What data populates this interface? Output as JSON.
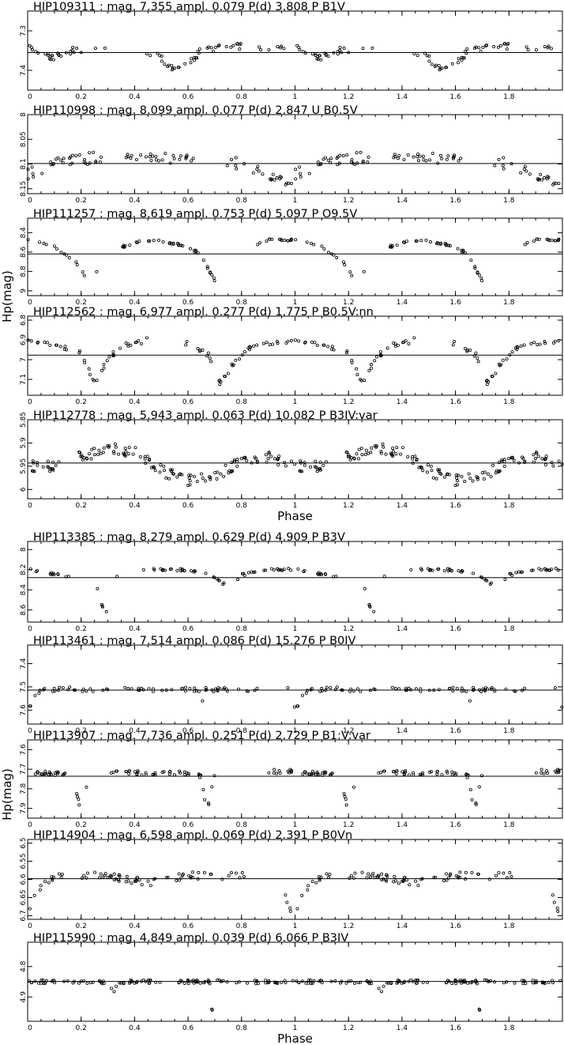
{
  "figure": {
    "phase_label": "Phase",
    "hp_label": "Hp(mag)"
  },
  "chart_data": [
    {
      "type": "scatter",
      "title": "HIP109311 : mag. 7.355 ampl. 0.079 P(d)   3.808 P B1V",
      "ylim": [
        7.45,
        7.25
      ],
      "reversed": true,
      "yticks": [
        7.3,
        7.4
      ],
      "mean": 7.355,
      "x_range": [
        0,
        2
      ],
      "xticks": [
        0,
        0.2,
        0.4,
        0.6,
        0.8,
        1,
        1.2,
        1.4,
        1.6,
        1.8
      ],
      "xlabel": "",
      "ylabel": "",
      "profile": [
        [
          0,
          7.34
        ],
        [
          0.05,
          7.36
        ],
        [
          0.1,
          7.37
        ],
        [
          0.15,
          7.35
        ],
        [
          0.3,
          7.35
        ],
        [
          0.45,
          7.35
        ],
        [
          0.5,
          7.37
        ],
        [
          0.56,
          7.4
        ],
        [
          0.6,
          7.38
        ],
        [
          0.65,
          7.35
        ],
        [
          0.75,
          7.34
        ],
        [
          0.9,
          7.34
        ],
        [
          1.0,
          7.34
        ]
      ],
      "gaps": [
        [
          0.29,
          0.44
        ],
        [
          0.8,
          0.86
        ]
      ],
      "points_per_cycle": 75,
      "scatter": 0.009,
      "phase_offset": 0.02
    },
    {
      "type": "scatter",
      "title": "HIP110998 : mag. 8.099 ampl. 0.077 P(d)   2.847 U B0.5V",
      "ylim": [
        8.16,
        8.0
      ],
      "reversed": true,
      "yticks": [
        8,
        8.05,
        8.1,
        8.15
      ],
      "mean": 8.099,
      "x_range": [
        0,
        2
      ],
      "xticks": [
        0,
        0.2,
        0.4,
        0.6,
        0.8,
        1,
        1.2,
        1.4,
        1.6,
        1.8
      ],
      "xlabel": "",
      "ylabel": "",
      "profile": [
        [
          0,
          8.12
        ],
        [
          0.05,
          8.11
        ],
        [
          0.1,
          8.09
        ],
        [
          0.2,
          8.09
        ],
        [
          0.4,
          8.08
        ],
        [
          0.6,
          8.09
        ],
        [
          0.8,
          8.1
        ],
        [
          0.9,
          8.12
        ],
        [
          0.97,
          8.14
        ],
        [
          1.0,
          8.12
        ]
      ],
      "gaps": [
        [
          0.28,
          0.36
        ],
        [
          0.62,
          0.74
        ]
      ],
      "points_per_cycle": 85,
      "scatter": 0.012,
      "phase_offset": 0.0
    },
    {
      "type": "scatter",
      "title": "HIP111257 : mag. 8.619 ampl. 0.753 P(d)   5.097 P O9.5V",
      "ylim": [
        9.05,
        8.25
      ],
      "reversed": true,
      "yticks": [
        8.4,
        8.6,
        8.8,
        9
      ],
      "mean": 8.619,
      "x_range": [
        0,
        2
      ],
      "xticks": [
        0,
        0.2,
        0.4,
        0.6,
        0.8,
        1,
        1.2,
        1.4,
        1.6,
        1.8
      ],
      "xlabel": "",
      "ylabel": "",
      "profile": [
        [
          0,
          8.47
        ],
        [
          0.1,
          8.55
        ],
        [
          0.18,
          8.7
        ],
        [
          0.23,
          8.92
        ],
        [
          0.3,
          8.6
        ],
        [
          0.4,
          8.5
        ],
        [
          0.5,
          8.48
        ],
        [
          0.6,
          8.55
        ],
        [
          0.65,
          8.63
        ],
        [
          0.7,
          8.9
        ],
        [
          0.75,
          9.05
        ],
        [
          0.8,
          8.6
        ],
        [
          0.9,
          8.48
        ],
        [
          1.0,
          8.47
        ]
      ],
      "gaps": [
        [
          0.26,
          0.33
        ],
        [
          0.72,
          0.85
        ]
      ],
      "points_per_cycle": 70,
      "scatter": 0.015,
      "phase_offset": 0.0
    },
    {
      "type": "scatter",
      "title": "HIP112562 : mag. 6.977 ampl. 0.277 P(d)   1.775 P B0.5V:nn",
      "ylim": [
        7.18,
        6.78
      ],
      "reversed": true,
      "yticks": [
        6.8,
        6.9,
        7,
        7.1
      ],
      "mean": 6.977,
      "x_range": [
        0,
        2
      ],
      "xticks": [
        0,
        0.2,
        0.4,
        0.6,
        0.8,
        1,
        1.2,
        1.4,
        1.6,
        1.8
      ],
      "xlabel": "",
      "ylabel": "",
      "profile": [
        [
          0,
          6.9
        ],
        [
          0.1,
          6.92
        ],
        [
          0.2,
          6.97
        ],
        [
          0.25,
          7.12
        ],
        [
          0.3,
          7.0
        ],
        [
          0.35,
          6.93
        ],
        [
          0.45,
          6.9
        ],
        [
          0.6,
          6.92
        ],
        [
          0.68,
          6.98
        ],
        [
          0.72,
          7.12
        ],
        [
          0.78,
          7.0
        ],
        [
          0.85,
          6.92
        ],
        [
          1.0,
          6.9
        ]
      ],
      "gaps": [
        [
          0.45,
          0.58
        ]
      ],
      "points_per_cycle": 80,
      "scatter": 0.012,
      "phase_offset": 0.0
    },
    {
      "type": "scatter",
      "title": "HIP112778 : mag. 5.943 ampl. 0.063 P(d)  10.082 P B3IV:var",
      "ylim": [
        6.02,
        5.85
      ],
      "reversed": true,
      "yticks": [
        5.85,
        5.9,
        5.95,
        6
      ],
      "mean": 5.943,
      "x_range": [
        0,
        2
      ],
      "xticks": [
        0,
        0.2,
        0.4,
        0.6,
        0.8,
        1,
        1.2,
        1.4,
        1.6,
        1.8
      ],
      "xlabel": "Phase",
      "ylabel": "",
      "profile": [
        [
          0,
          5.95
        ],
        [
          0.1,
          5.95
        ],
        [
          0.2,
          5.93
        ],
        [
          0.3,
          5.91
        ],
        [
          0.4,
          5.92
        ],
        [
          0.5,
          5.96
        ],
        [
          0.6,
          5.98
        ],
        [
          0.7,
          5.97
        ],
        [
          0.8,
          5.94
        ],
        [
          0.9,
          5.93
        ],
        [
          1.0,
          5.95
        ]
      ],
      "gaps": [
        [
          0.12,
          0.18
        ]
      ],
      "points_per_cycle": 140,
      "scatter": 0.012,
      "phase_offset": 0.0
    },
    {
      "type": "scatter",
      "title": "HIP113385 : mag. 8.279 ampl. 0.629 P(d)   4.909 P B3V",
      "ylim": [
        8.72,
        7.92
      ],
      "reversed": true,
      "yticks": [
        8,
        8.2,
        8.4,
        8.6
      ],
      "mean": 8.279,
      "x_range": [
        0,
        2
      ],
      "xticks": [
        0,
        0.2,
        0.4,
        0.6,
        0.8,
        1,
        1.2,
        1.4,
        1.6,
        1.8
      ],
      "xlabel": "",
      "ylabel": "",
      "profile": [
        [
          0,
          8.2
        ],
        [
          0.05,
          8.22
        ],
        [
          0.15,
          8.26
        ],
        [
          0.25,
          8.3
        ],
        [
          0.29,
          8.65
        ],
        [
          0.33,
          8.28
        ],
        [
          0.45,
          8.2
        ],
        [
          0.6,
          8.2
        ],
        [
          0.7,
          8.27
        ],
        [
          0.75,
          8.38
        ],
        [
          0.8,
          8.25
        ],
        [
          0.9,
          8.19
        ],
        [
          1.0,
          8.2
        ]
      ],
      "gaps": [
        [
          0.16,
          0.26
        ],
        [
          0.34,
          0.43
        ]
      ],
      "points_per_cycle": 70,
      "scatter": 0.013,
      "phase_offset": 0.0
    },
    {
      "type": "scatter",
      "title": "HIP113461 : mag. 7.514 ampl. 0.086 P(d)  15.276 P B0IV",
      "ylim": [
        7.66,
        7.32
      ],
      "reversed": true,
      "yticks": [
        7.4,
        7.5,
        7.6
      ],
      "mean": 7.514,
      "x_range": [
        0,
        2
      ],
      "xticks": [
        0,
        0.2,
        0.4,
        0.6,
        0.8,
        1,
        1.2,
        1.4,
        1.6,
        1.8
      ],
      "xlabel": "",
      "ylabel": "",
      "profile": [
        [
          0,
          7.6
        ],
        [
          0.02,
          7.55
        ],
        [
          0.06,
          7.51
        ],
        [
          0.5,
          7.51
        ],
        [
          0.64,
          7.51
        ],
        [
          0.65,
          7.6
        ],
        [
          0.66,
          7.51
        ],
        [
          0.98,
          7.51
        ],
        [
          1.0,
          7.6
        ]
      ],
      "gaps": [
        [
          0.3,
          0.36
        ],
        [
          0.88,
          0.94
        ]
      ],
      "points_per_cycle": 70,
      "scatter": 0.01,
      "phase_offset": 0.0
    },
    {
      "type": "scatter",
      "title": "HIP113907 : mag. 7.736 ampl. 0.251 P(d)   2.729 P B1:V:var",
      "ylim": [
        7.95,
        7.55
      ],
      "reversed": true,
      "yticks": [
        7.6,
        7.7,
        7.8,
        7.9
      ],
      "mean": 7.736,
      "x_range": [
        0,
        2
      ],
      "xticks": [
        0,
        0.2,
        0.4,
        0.6,
        0.8,
        1,
        1.2,
        1.4,
        1.6,
        1.8
      ],
      "xlabel": "",
      "ylabel": "",
      "profile": [
        [
          0,
          7.71
        ],
        [
          0.1,
          7.72
        ],
        [
          0.15,
          7.73
        ],
        [
          0.18,
          7.8
        ],
        [
          0.2,
          7.92
        ],
        [
          0.22,
          7.78
        ],
        [
          0.3,
          7.72
        ],
        [
          0.6,
          7.72
        ],
        [
          0.65,
          7.74
        ],
        [
          0.67,
          7.92
        ],
        [
          0.7,
          7.72
        ],
        [
          1.0,
          7.71
        ]
      ],
      "gaps": [
        [
          0.22,
          0.3
        ],
        [
          0.7,
          0.9
        ]
      ],
      "points_per_cycle": 85,
      "scatter": 0.012,
      "phase_offset": 0.0
    },
    {
      "type": "scatter",
      "title": "HIP114904 : mag. 6.598 ampl. 0.069 P(d)   2.391 P B0Vn",
      "ylim": [
        6.71,
        6.49
      ],
      "reversed": true,
      "yticks": [
        6.5,
        6.55,
        6.6,
        6.65,
        6.7
      ],
      "mean": 6.598,
      "x_range": [
        0,
        2
      ],
      "xticks": [
        0,
        0.2,
        0.4,
        0.6,
        0.8,
        1,
        1.2,
        1.4,
        1.6,
        1.8
      ],
      "xlabel": "",
      "ylabel": "",
      "profile": [
        [
          0,
          6.69
        ],
        [
          0.02,
          6.66
        ],
        [
          0.06,
          6.61
        ],
        [
          0.1,
          6.59
        ],
        [
          0.3,
          6.59
        ],
        [
          0.45,
          6.61
        ],
        [
          0.6,
          6.59
        ],
        [
          0.8,
          6.59
        ],
        [
          0.95,
          6.61
        ],
        [
          0.98,
          6.68
        ],
        [
          1.0,
          6.69
        ]
      ],
      "gaps": [
        [
          0.15,
          0.2
        ],
        [
          0.85,
          0.95
        ]
      ],
      "points_per_cycle": 80,
      "scatter": 0.01,
      "phase_offset": 0.0
    },
    {
      "type": "scatter",
      "title": "HIP115990 : mag. 4.849 ampl. 0.039 P(d)   6.066 P B3IV",
      "ylim": [
        4.98,
        4.72
      ],
      "reversed": true,
      "yticks": [
        4.8,
        4.9
      ],
      "mean": 4.849,
      "x_range": [
        0,
        2
      ],
      "xticks": [
        0,
        0.2,
        0.4,
        0.6,
        0.8,
        1,
        1.2,
        1.4,
        1.6,
        1.8
      ],
      "xlabel": "Phase",
      "ylabel": "",
      "profile": [
        [
          0,
          4.85
        ],
        [
          0.3,
          4.85
        ],
        [
          0.32,
          4.88
        ],
        [
          0.35,
          4.85
        ],
        [
          0.68,
          4.85
        ],
        [
          0.69,
          4.95
        ],
        [
          0.7,
          4.85
        ],
        [
          1.0,
          4.85
        ]
      ],
      "gaps": [
        [
          0.5,
          0.55
        ]
      ],
      "points_per_cycle": 110,
      "scatter": 0.006,
      "phase_offset": 0.0
    }
  ]
}
